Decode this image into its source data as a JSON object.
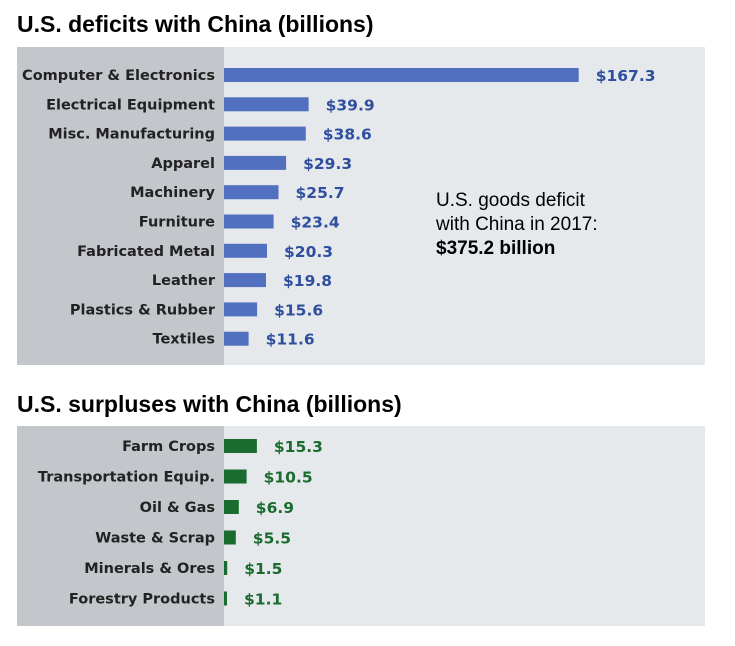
{
  "chart_data": [
    {
      "type": "bar",
      "orientation": "horizontal",
      "title": "U.S. deficits with China (billions)",
      "categories": [
        "Computer & Electronics",
        "Electrical Equipment",
        "Misc. Manufacturing",
        "Apparel",
        "Machinery",
        "Furniture",
        "Fabricated Metal",
        "Leather",
        "Plastics & Rubber",
        "Textiles"
      ],
      "values": [
        167.3,
        39.9,
        38.6,
        29.3,
        25.7,
        23.4,
        20.3,
        19.8,
        15.6,
        11.6
      ],
      "value_labels": [
        "$167.3",
        "$39.9",
        "$38.6",
        "$29.3",
        "$25.7",
        "$23.4",
        "$20.3",
        "$19.8",
        "$15.6",
        "$11.6"
      ],
      "bar_color": "#5170bf",
      "label_color": "#2f4f9e",
      "annotation": {
        "line1": "U.S. goods deficit",
        "line2": "with China in 2017:",
        "line3": "$375.2 billion"
      }
    },
    {
      "type": "bar",
      "orientation": "horizontal",
      "title": "U.S. surpluses with China (billions)",
      "categories": [
        "Farm Crops",
        "Transportation Equip.",
        "Oil & Gas",
        "Waste & Scrap",
        "Minerals & Ores",
        "Forestry Products"
      ],
      "values": [
        15.3,
        10.5,
        6.9,
        5.5,
        1.5,
        1.1
      ],
      "value_labels": [
        "$15.3",
        "$10.5",
        "$6.9",
        "$5.5",
        "$1.5",
        "$1.1"
      ],
      "bar_color": "#1a6b2e",
      "label_color": "#1a6b2e"
    }
  ],
  "colors": {
    "label_panel": "#c3c6ca",
    "plot_panel": "#e6e9ec"
  }
}
